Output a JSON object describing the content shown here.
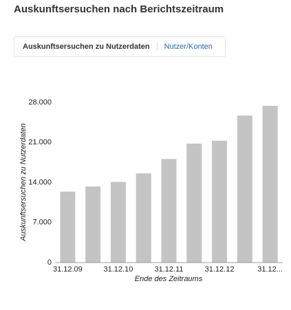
{
  "header": {
    "title": "Auskunftsersuchen nach Berichtszeitraum"
  },
  "tabs": [
    "Auskunftsersuchen zu Nutzerdaten",
    "Nutzer/Konten"
  ],
  "chart_data": {
    "type": "bar",
    "x_label": "Ende des Zeitraums",
    "y_label": "Auskunftsersuchen zu Nutzerdaten",
    "categories": [
      "31.12.09",
      null,
      "31.12.10",
      null,
      "31.12.11",
      null,
      "31.12.12",
      null,
      "31.12..."
    ],
    "values": [
      12400,
      13300,
      14100,
      15600,
      18100,
      20800,
      21300,
      25700,
      27400
    ],
    "color": "#c4c4c4",
    "ylim": [
      0,
      28000
    ],
    "yticks": [
      0,
      {
        "value": 7000,
        "label": "7.000"
      },
      {
        "value": 14000,
        "label": "14.000"
      },
      {
        "value": 21000,
        "label": "21.000"
      },
      {
        "value": 28000,
        "label": "28.000"
      }
    ],
    "grid": false
  }
}
